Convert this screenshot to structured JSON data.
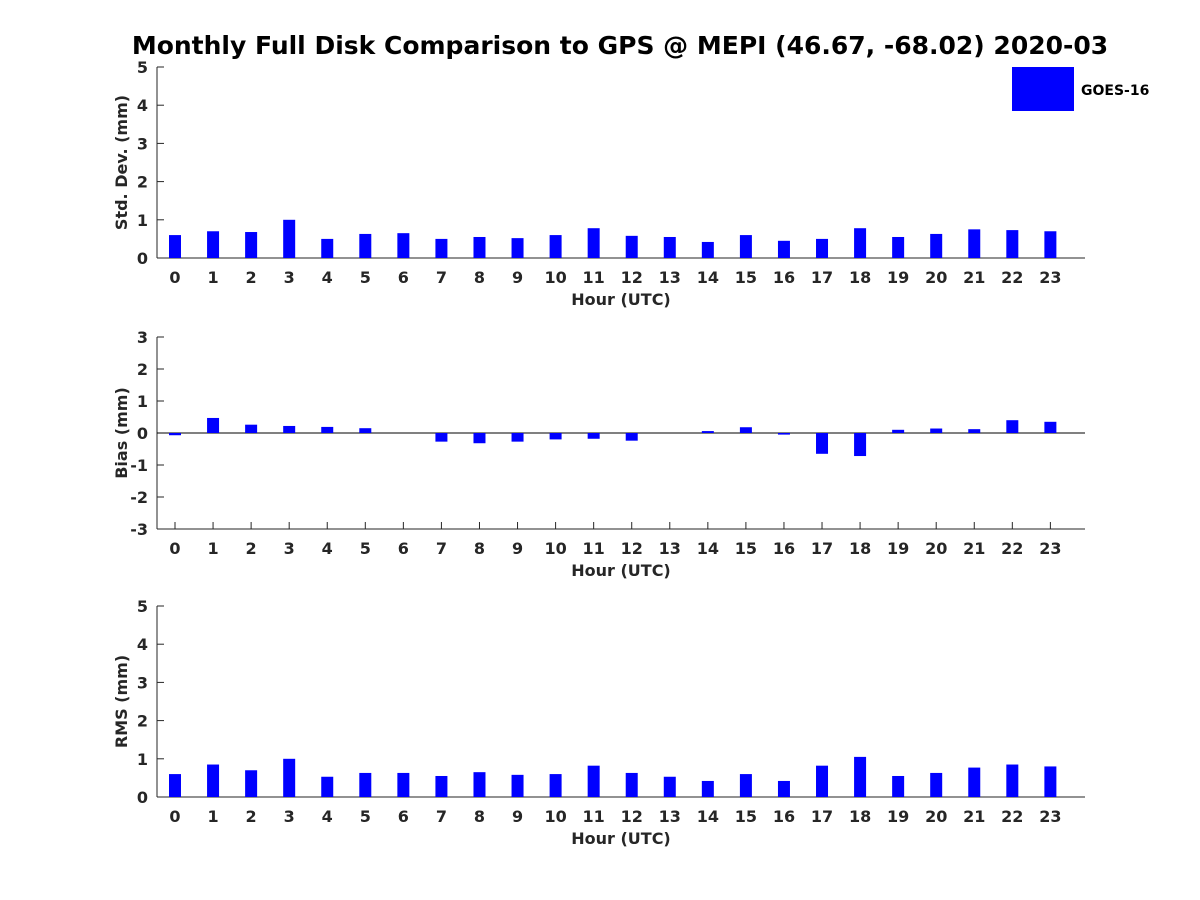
{
  "colors": {
    "series": "#0000ff",
    "axis": "#262626",
    "background": "#ffffff"
  },
  "chart_data": {
    "type": "bar",
    "title": "Monthly Full Disk Comparison to GPS @ MEPI (46.67, -68.02) 2020-03",
    "legend": {
      "entries": [
        "GOES-16"
      ],
      "placement": "top-right"
    },
    "categories": [
      "0",
      "1",
      "2",
      "3",
      "4",
      "5",
      "6",
      "7",
      "8",
      "9",
      "10",
      "11",
      "12",
      "13",
      "14",
      "15",
      "16",
      "17",
      "18",
      "19",
      "20",
      "21",
      "22",
      "23"
    ],
    "panels": [
      {
        "id": "std",
        "ylabel": "Std. Dev. (mm)",
        "xlabel": "Hour (UTC)",
        "ylim": [
          0,
          5
        ],
        "yticks": [
          "0",
          "1",
          "2",
          "3",
          "4",
          "5"
        ],
        "grid": false,
        "series": [
          {
            "name": "GOES-16",
            "values": [
              0.6,
              0.7,
              0.68,
              1.0,
              0.5,
              0.63,
              0.65,
              0.5,
              0.55,
              0.52,
              0.6,
              0.78,
              0.58,
              0.55,
              0.42,
              0.6,
              0.45,
              0.5,
              0.78,
              0.55,
              0.63,
              0.75,
              0.73,
              0.7
            ]
          }
        ]
      },
      {
        "id": "bias",
        "ylabel": "Bias (mm)",
        "xlabel": "Hour (UTC)",
        "ylim": [
          -3,
          3
        ],
        "yticks": [
          "-3",
          "-2",
          "-1",
          "0",
          "1",
          "2",
          "3"
        ],
        "grid": false,
        "zero_line": true,
        "series": [
          {
            "name": "GOES-16",
            "values": [
              -0.07,
              0.47,
              0.26,
              0.22,
              0.19,
              0.15,
              0.0,
              -0.27,
              -0.32,
              -0.27,
              -0.2,
              -0.18,
              -0.24,
              0.0,
              0.06,
              0.18,
              -0.05,
              -0.65,
              -0.72,
              0.1,
              0.14,
              0.12,
              0.4,
              0.35
            ]
          }
        ]
      },
      {
        "id": "rms",
        "ylabel": "RMS (mm)",
        "xlabel": "Hour (UTC)",
        "ylim": [
          0,
          5
        ],
        "yticks": [
          "0",
          "1",
          "2",
          "3",
          "4",
          "5"
        ],
        "grid": false,
        "series": [
          {
            "name": "GOES-16",
            "values": [
              0.6,
              0.85,
              0.7,
              1.0,
              0.53,
              0.63,
              0.63,
              0.55,
              0.65,
              0.58,
              0.6,
              0.82,
              0.63,
              0.53,
              0.42,
              0.6,
              0.42,
              0.82,
              1.05,
              0.55,
              0.63,
              0.77,
              0.85,
              0.8
            ]
          }
        ]
      }
    ]
  }
}
